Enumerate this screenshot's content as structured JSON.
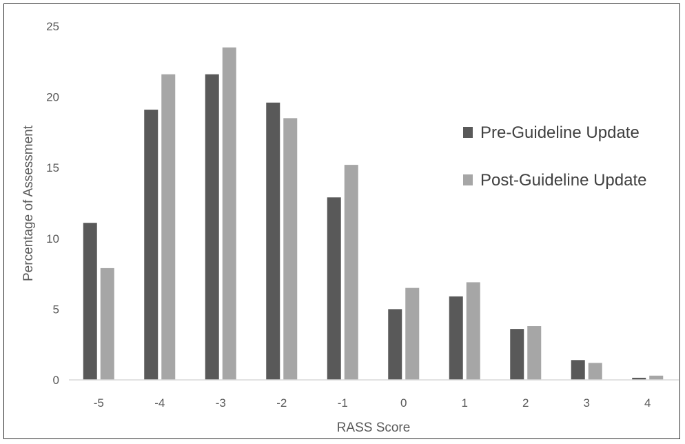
{
  "chart_data": {
    "type": "bar",
    "title": "",
    "xlabel": "RASS Score",
    "ylabel": "Percentage of Assessment",
    "ylim": [
      0,
      25
    ],
    "yticks": [
      "0",
      "5",
      "10",
      "15",
      "20",
      "25"
    ],
    "categories": [
      "-5",
      "-4",
      "-3",
      "-2",
      "-1",
      "0",
      "1",
      "2",
      "3",
      "4"
    ],
    "series": [
      {
        "name": "Pre-Guideline Update",
        "color": "#595959",
        "values": [
          11.1,
          19.1,
          21.6,
          19.6,
          12.9,
          5.0,
          5.9,
          3.6,
          1.4,
          0.15
        ]
      },
      {
        "name": "Post-Guideline Update",
        "color": "#a6a6a6",
        "values": [
          7.9,
          21.6,
          23.5,
          18.5,
          15.2,
          6.5,
          6.9,
          3.8,
          1.2,
          0.3
        ]
      }
    ],
    "grid": false,
    "legend_position": "right"
  }
}
